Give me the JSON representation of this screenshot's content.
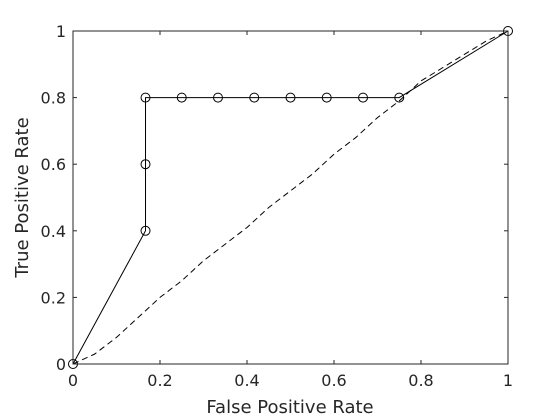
{
  "chart_data": {
    "type": "line",
    "title": "",
    "xlabel": "False Positive Rate",
    "ylabel": "True Positive Rate",
    "xlim": [
      0,
      1
    ],
    "ylim": [
      0,
      1
    ],
    "x_ticks": [
      0,
      0.2,
      0.4,
      0.6,
      0.8,
      1
    ],
    "y_ticks": [
      0,
      0.2,
      0.4,
      0.6,
      0.8,
      1
    ],
    "x_tick_labels": [
      "0",
      "0.2",
      "0.4",
      "0.6",
      "0.8",
      "1"
    ],
    "y_tick_labels": [
      "0",
      "0.2",
      "0.4",
      "0.6",
      "0.8",
      "1"
    ],
    "grid": false,
    "legend": "none",
    "series": [
      {
        "style": "solid",
        "marker": "circle",
        "color": "#000000",
        "x": [
          0,
          0.1667,
          0.1667,
          0.1667,
          0.25,
          0.3333,
          0.4167,
          0.5,
          0.5833,
          0.6667,
          0.75,
          1
        ],
        "y": [
          0,
          0.4,
          0.6,
          0.8,
          0.8,
          0.8,
          0.8,
          0.8,
          0.8,
          0.8,
          0.8,
          1
        ]
      },
      {
        "style": "dashed",
        "marker": "none",
        "color": "#000000",
        "x": [
          0,
          0.05,
          0.1,
          0.15,
          0.2,
          0.25,
          0.3,
          0.35,
          0.4,
          0.45,
          0.5,
          0.55,
          0.6,
          0.65,
          0.7,
          0.75,
          0.8,
          0.85,
          0.9,
          0.95,
          1
        ],
        "y": [
          0,
          0.03,
          0.08,
          0.14,
          0.2,
          0.25,
          0.31,
          0.36,
          0.41,
          0.47,
          0.52,
          0.57,
          0.63,
          0.68,
          0.74,
          0.79,
          0.85,
          0.89,
          0.93,
          0.97,
          1
        ]
      }
    ]
  }
}
